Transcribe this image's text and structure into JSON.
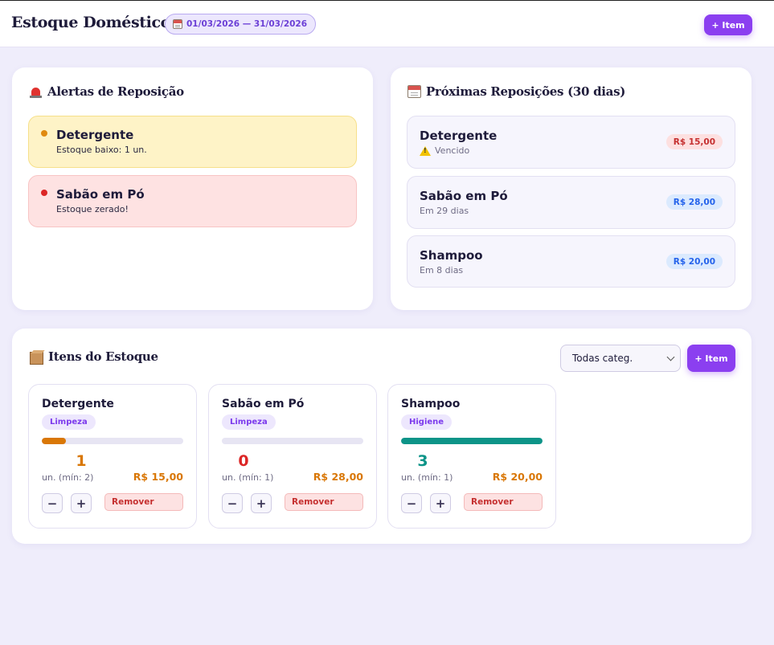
{
  "header": {
    "title": "Estoque Doméstico",
    "period": "01/03/2026 — 31/03/2026",
    "add_button": "+ Item"
  },
  "alerts": {
    "title": "Alertas de Reposição",
    "icon": "siren-icon",
    "items": [
      {
        "name": "Detergente",
        "desc": "Estoque baixo: 1 un.",
        "level": "warning"
      },
      {
        "name": "Sabão em Pó",
        "desc": "Estoque zerado!",
        "level": "danger"
      }
    ]
  },
  "restock": {
    "title": "Próximas Reposições (30 dias)",
    "icon": "calendar-icon",
    "items": [
      {
        "name": "Detergente",
        "sub": "Vencido",
        "price": "R$ 15,00",
        "status": "overdue"
      },
      {
        "name": "Sabão em Pó",
        "sub": "Em 29 dias",
        "price": "R$ 28,00",
        "status": "upcoming"
      },
      {
        "name": "Shampoo",
        "sub": "Em 8 dias",
        "price": "R$ 20,00",
        "status": "upcoming"
      }
    ]
  },
  "inventory": {
    "title": "Itens do Estoque",
    "icon": "box-icon",
    "filter_value": "Todas categ.",
    "add_button": "+ Item",
    "decrement_label": "−",
    "increment_label": "+",
    "remove_label": "Remover",
    "items": [
      {
        "name": "Detergente",
        "category": "Limpeza",
        "qty": "1",
        "min": "un. (mín: 2)",
        "price": "R$ 15,00",
        "stock_fraction": 0.17,
        "color": "#d97706"
      },
      {
        "name": "Sabão em Pó",
        "category": "Limpeza",
        "qty": "0",
        "min": "un. (mín: 1)",
        "price": "R$ 28,00",
        "stock_fraction": 0,
        "color": "#dc2626"
      },
      {
        "name": "Shampoo",
        "category": "Higiene",
        "qty": "3",
        "min": "un. (mín: 1)",
        "price": "R$ 20,00",
        "stock_fraction": 1,
        "color": "#0d9488"
      }
    ]
  },
  "colors": {
    "accent": "#8b3ff0",
    "background": "#efedfb",
    "warning": "#d97706",
    "danger": "#dc2626",
    "ok": "#0d9488"
  }
}
